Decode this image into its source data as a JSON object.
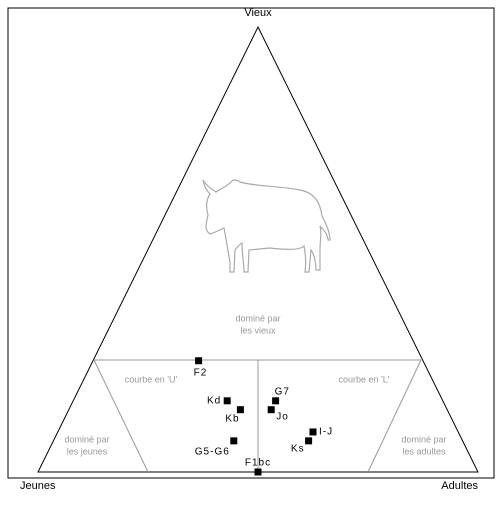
{
  "chart_data": {
    "type": "ternary",
    "axes": {
      "top": "Vieux",
      "left": "Jeunes",
      "right": "Adultes"
    },
    "regions": {
      "old": [
        "dominé par",
        "les vieux"
      ],
      "u": "courbe en 'U'",
      "l": "courbe en 'L'",
      "young": [
        "dominé par",
        "les jeunes"
      ],
      "adult": [
        "dominé par",
        "les adultes"
      ]
    },
    "color": "#000000",
    "points": [
      {
        "label": "F2",
        "young": 51,
        "adult": 24,
        "old": 25
      },
      {
        "label": "Kd",
        "young": 49,
        "adult": 35,
        "old": 16
      },
      {
        "label": "Kb",
        "young": 47,
        "adult": 39,
        "old": 14
      },
      {
        "label": "G7",
        "young": 38,
        "adult": 46,
        "old": 16
      },
      {
        "label": "Jo",
        "young": 40,
        "adult": 46,
        "old": 14
      },
      {
        "label": "I-J",
        "young": 33,
        "adult": 58,
        "old": 9
      },
      {
        "label": "Ks",
        "young": 35,
        "adult": 58,
        "old": 7
      },
      {
        "label": "G5-G6",
        "young": 52,
        "adult": 41,
        "old": 7
      },
      {
        "label": "F1bc",
        "young": 50,
        "adult": 50,
        "old": 0
      }
    ]
  }
}
